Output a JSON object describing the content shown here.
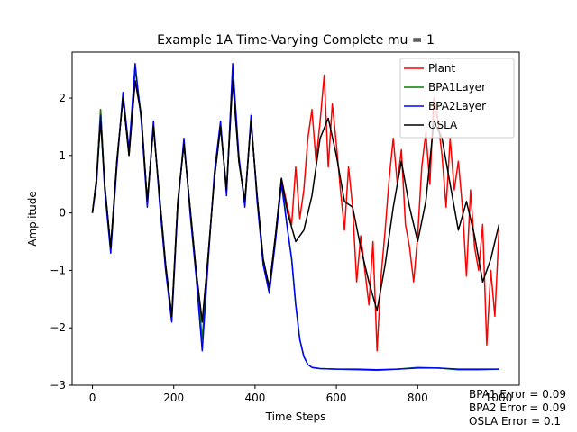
{
  "chart_data": {
    "type": "line",
    "title": "Example 1A Time-Varying Complete mu = 1",
    "xlabel": "Time Steps",
    "ylabel": "Amplitude",
    "xlim": [
      -50,
      1050
    ],
    "ylim": [
      -3.0,
      2.8
    ],
    "xticks": [
      0,
      200,
      400,
      600,
      800
    ],
    "xtick_labels": [
      "0",
      "200",
      "400",
      "600",
      "800"
    ],
    "yticks": [
      -3,
      -2,
      -1,
      0,
      1,
      2
    ],
    "ytick_labels": [
      "−3",
      "−2",
      "−1",
      "0",
      "1",
      "2"
    ],
    "grid": false,
    "legend_position": "top-right",
    "series": [
      {
        "name": "Plant",
        "color": "#ff0000",
        "x": [
          0,
          10,
          20,
          30,
          45,
          60,
          75,
          90,
          105,
          120,
          135,
          150,
          165,
          180,
          195,
          210,
          225,
          240,
          255,
          270,
          285,
          300,
          315,
          330,
          345,
          360,
          375,
          390,
          405,
          420,
          435,
          450,
          465,
          480,
          490,
          500,
          510,
          520,
          530,
          540,
          550,
          560,
          570,
          580,
          590,
          600,
          610,
          620,
          630,
          640,
          650,
          660,
          670,
          680,
          690,
          700,
          710,
          720,
          730,
          740,
          750,
          760,
          770,
          780,
          790,
          800,
          810,
          820,
          830,
          840,
          850,
          860,
          870,
          880,
          890,
          900,
          910,
          920,
          930,
          940,
          950,
          960,
          970,
          980,
          990,
          1000
        ],
        "y": [
          0.0,
          0.6,
          1.8,
          0.5,
          -0.6,
          0.9,
          2.0,
          1.0,
          2.3,
          1.7,
          0.2,
          1.5,
          0.3,
          -0.9,
          -1.8,
          0.2,
          1.2,
          0.1,
          -1.0,
          -1.9,
          -0.7,
          0.6,
          1.5,
          0.4,
          2.4,
          0.9,
          0.2,
          1.6,
          0.3,
          -0.8,
          -1.3,
          -0.4,
          0.6,
          0.1,
          -0.2,
          0.8,
          -0.1,
          0.4,
          1.3,
          1.8,
          0.9,
          1.6,
          2.4,
          0.8,
          1.9,
          1.2,
          0.4,
          -0.3,
          0.8,
          0.1,
          -1.2,
          -0.4,
          -1.0,
          -1.6,
          -0.5,
          -2.4,
          -1.1,
          -0.3,
          0.6,
          1.3,
          0.5,
          1.1,
          -0.2,
          -0.6,
          -1.2,
          -0.4,
          0.8,
          1.4,
          0.5,
          2.0,
          1.6,
          1.0,
          0.1,
          1.3,
          0.4,
          0.9,
          0.1,
          -1.1,
          0.4,
          -0.6,
          -1.0,
          -0.2,
          -2.3,
          -1.0,
          -1.8,
          -0.3
        ]
      },
      {
        "name": "BPA1Layer",
        "color": "#008000",
        "x": [
          0,
          10,
          20,
          30,
          45,
          60,
          75,
          90,
          105,
          120,
          135,
          150,
          165,
          180,
          195,
          210,
          225,
          240,
          255,
          270,
          285,
          300,
          315,
          330,
          345,
          360,
          375,
          390,
          405,
          420,
          435,
          450,
          465,
          480,
          490,
          500,
          510,
          520,
          530,
          540,
          560,
          600,
          650,
          700,
          750,
          800,
          850,
          900,
          950,
          1000
        ],
        "y": [
          0.0,
          0.6,
          1.8,
          0.5,
          -0.6,
          0.9,
          2.0,
          1.0,
          2.5,
          1.7,
          0.2,
          1.5,
          0.3,
          -0.9,
          -1.8,
          0.2,
          1.2,
          0.1,
          -1.0,
          -2.2,
          -0.7,
          0.6,
          1.5,
          0.4,
          2.5,
          0.9,
          0.2,
          1.6,
          0.3,
          -0.8,
          -1.3,
          -0.4,
          0.6,
          -0.3,
          -0.8,
          -1.6,
          -2.2,
          -2.5,
          -2.64,
          -2.69,
          -2.71,
          -2.72,
          -2.73,
          -2.74,
          -2.72,
          -2.69,
          -2.7,
          -2.73,
          -2.73,
          -2.72
        ]
      },
      {
        "name": "BPA2Layer",
        "color": "#0000ff",
        "x": [
          0,
          10,
          20,
          30,
          45,
          60,
          75,
          90,
          105,
          120,
          135,
          150,
          165,
          180,
          195,
          210,
          225,
          240,
          255,
          270,
          285,
          300,
          315,
          330,
          345,
          360,
          375,
          390,
          405,
          420,
          435,
          450,
          465,
          480,
          490,
          500,
          510,
          520,
          530,
          540,
          560,
          600,
          650,
          700,
          750,
          800,
          850,
          900,
          950,
          1000
        ],
        "y": [
          0.0,
          0.5,
          1.7,
          0.4,
          -0.7,
          0.8,
          2.1,
          1.1,
          2.6,
          1.6,
          0.1,
          1.6,
          0.2,
          -1.0,
          -1.9,
          0.1,
          1.3,
          0.0,
          -1.1,
          -2.4,
          -0.8,
          0.7,
          1.6,
          0.3,
          2.6,
          1.0,
          0.1,
          1.7,
          0.2,
          -0.9,
          -1.4,
          -0.5,
          0.5,
          -0.3,
          -0.8,
          -1.6,
          -2.2,
          -2.5,
          -2.64,
          -2.69,
          -2.71,
          -2.72,
          -2.72,
          -2.73,
          -2.72,
          -2.7,
          -2.7,
          -2.72,
          -2.72,
          -2.72
        ]
      },
      {
        "name": "OSLA",
        "color": "#000000",
        "x": [
          0,
          10,
          20,
          30,
          45,
          60,
          75,
          90,
          105,
          120,
          135,
          150,
          165,
          180,
          195,
          210,
          225,
          240,
          255,
          270,
          285,
          300,
          315,
          330,
          345,
          360,
          375,
          390,
          405,
          420,
          435,
          450,
          465,
          480,
          500,
          520,
          540,
          560,
          580,
          600,
          620,
          640,
          660,
          680,
          700,
          720,
          740,
          760,
          780,
          800,
          820,
          840,
          860,
          880,
          900,
          920,
          940,
          960,
          980,
          1000
        ],
        "y": [
          0.0,
          0.6,
          1.6,
          0.5,
          -0.6,
          0.9,
          2.0,
          1.0,
          2.3,
          1.7,
          0.2,
          1.5,
          0.3,
          -0.9,
          -1.8,
          0.2,
          1.2,
          0.1,
          -1.0,
          -1.9,
          -0.7,
          0.6,
          1.5,
          0.4,
          2.3,
          0.9,
          0.2,
          1.6,
          0.3,
          -0.8,
          -1.3,
          -0.4,
          0.6,
          0.0,
          -0.5,
          -0.3,
          0.3,
          1.3,
          1.65,
          1.0,
          0.2,
          0.1,
          -0.6,
          -1.2,
          -1.7,
          -0.9,
          0.1,
          0.9,
          0.1,
          -0.5,
          0.2,
          1.6,
          1.3,
          0.5,
          -0.3,
          0.2,
          -0.4,
          -1.2,
          -0.8,
          -0.2
        ]
      }
    ],
    "annotations": [
      "BPA1 Error = 0.09",
      "BPA2 Error = 0.09",
      "OSLA Error = 0.1"
    ],
    "partial_tick_label": "1000"
  }
}
